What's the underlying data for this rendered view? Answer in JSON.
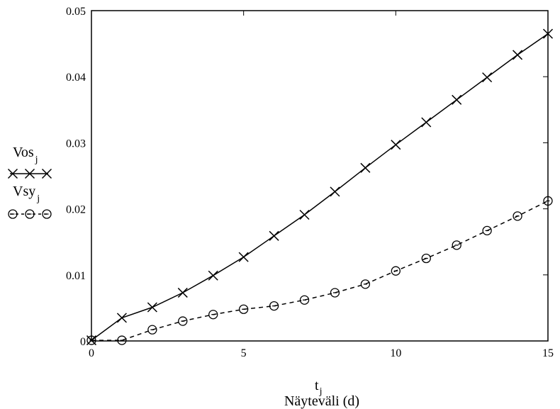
{
  "chart_data": {
    "type": "line",
    "xlim": [
      0,
      15
    ],
    "ylim": [
      0,
      0.05
    ],
    "x_ticks": [
      "0",
      "5",
      "10",
      "15"
    ],
    "y_ticks": [
      "0",
      "0.01",
      "0.02",
      "0.03",
      "0.04",
      "0.05"
    ],
    "x_tick_values": [
      0,
      5,
      10,
      15
    ],
    "y_tick_values": [
      0,
      0.01,
      0.02,
      0.03,
      0.04,
      0.05
    ],
    "xlabel": {
      "base": "t",
      "sub": "j",
      "caption": "Näyteväli (d)"
    },
    "grid": false,
    "legend_position": "left",
    "x": [
      0,
      1,
      2,
      3,
      4,
      5,
      6,
      7,
      8,
      9,
      10,
      11,
      12,
      13,
      14,
      15
    ],
    "series": [
      {
        "name": "Vos",
        "name_sub": "j",
        "marker": "x",
        "line_style": "solid",
        "color": "#000000",
        "values": [
          0.0001,
          0.0035,
          0.0051,
          0.0073,
          0.0099,
          0.0127,
          0.0159,
          0.0191,
          0.0226,
          0.0262,
          0.0297,
          0.0331,
          0.0365,
          0.0399,
          0.0433,
          0.0465
        ]
      },
      {
        "name": "Vsy",
        "name_sub": "j",
        "marker": "o",
        "line_style": "dashed",
        "color": "#000000",
        "values": [
          0.0001,
          0.0001,
          0.0017,
          0.003,
          0.004,
          0.0048,
          0.0053,
          0.0062,
          0.0073,
          0.0086,
          0.0106,
          0.0125,
          0.0145,
          0.0167,
          0.0189,
          0.0212
        ]
      }
    ]
  }
}
